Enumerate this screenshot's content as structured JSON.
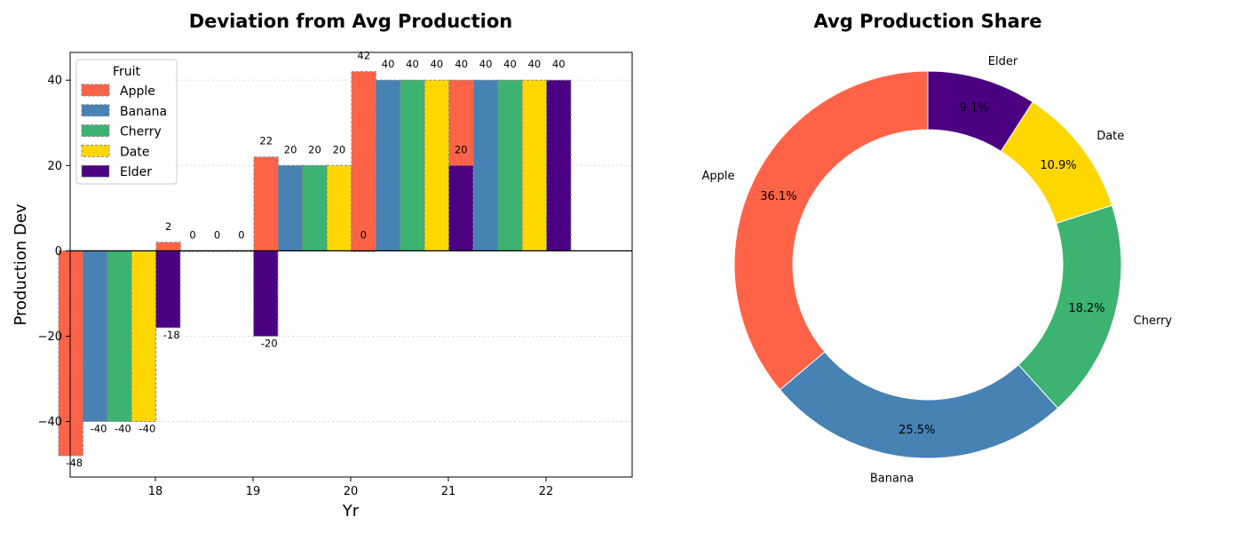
{
  "chart_data": [
    {
      "type": "bar",
      "title": "Deviation from Avg Production",
      "xlabel": "Yr",
      "ylabel": "Production Dev",
      "categories": [
        "18",
        "19",
        "20",
        "21",
        "22"
      ],
      "ylim": [
        -53,
        46.5
      ],
      "yticks": [
        -40,
        -20,
        0,
        20,
        40
      ],
      "ytick_labels": [
        "−40",
        "−20",
        "0",
        "20",
        "40"
      ],
      "grid": true,
      "legend": {
        "title": "Fruit",
        "position": "top-left"
      },
      "series": [
        {
          "name": "Apple",
          "color": "#FF6347",
          "values": [
            -48,
            2,
            22,
            42,
            40
          ]
        },
        {
          "name": "Banana",
          "color": "#4682B4",
          "values": [
            -40,
            0,
            20,
            40,
            40
          ]
        },
        {
          "name": "Cherry",
          "color": "#3CB371",
          "values": [
            -40,
            0,
            20,
            40,
            40
          ]
        },
        {
          "name": "Date",
          "color": "#FFD700",
          "values": [
            -40,
            0,
            20,
            40,
            40
          ]
        },
        {
          "name": "Elder",
          "color": "#4B0082",
          "values": [
            -18,
            -20,
            0,
            20,
            40
          ]
        }
      ]
    },
    {
      "type": "pie",
      "subtype": "donut",
      "title": "Avg Production Share",
      "labels": [
        "Apple",
        "Banana",
        "Cherry",
        "Date",
        "Elder"
      ],
      "values": [
        36.1,
        25.5,
        18.2,
        10.9,
        9.1
      ],
      "percent_labels": [
        "36.1%",
        "25.5%",
        "18.2%",
        "10.9%",
        "9.1%"
      ],
      "colors": [
        "#FF6347",
        "#4682B4",
        "#3CB371",
        "#FFD700",
        "#4B0082"
      ],
      "start_angle_deg": 90,
      "direction": "counterclockwise"
    }
  ]
}
